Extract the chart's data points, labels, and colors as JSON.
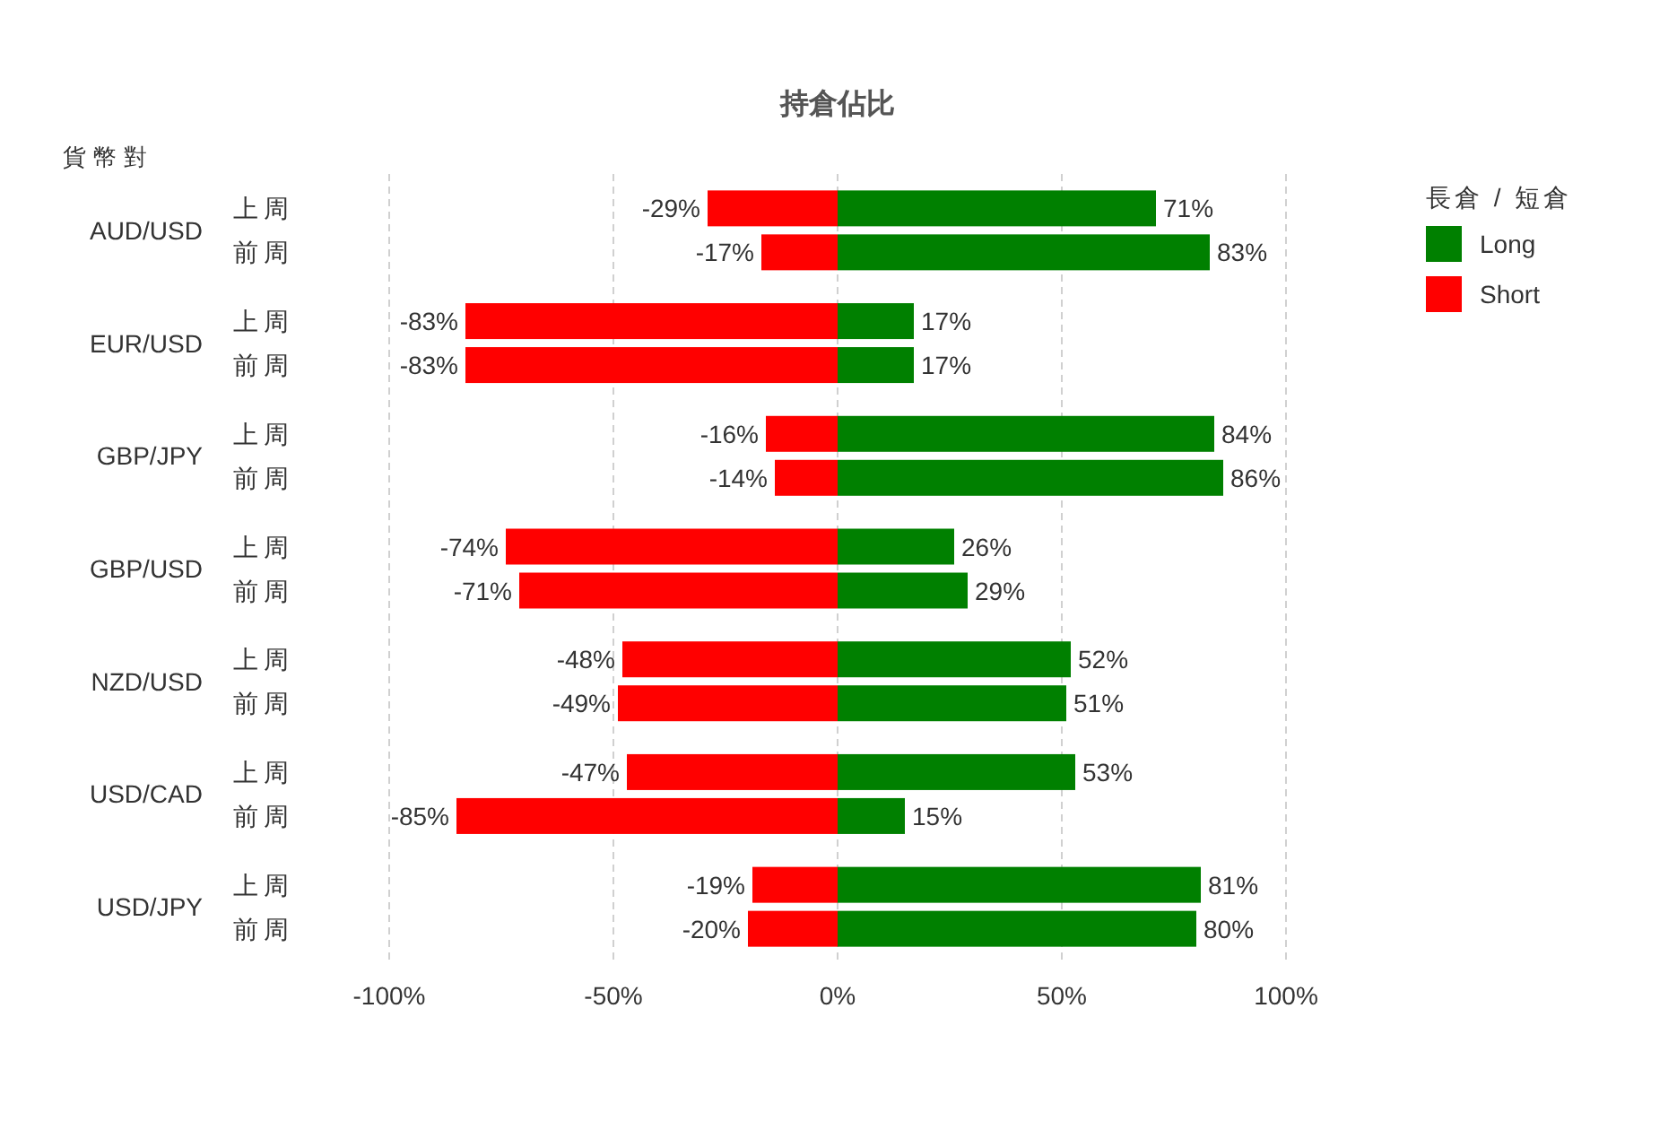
{
  "chart_data": {
    "type": "bar",
    "orientation": "horizontal",
    "stacked": true,
    "title": "持倉佔比",
    "ylabel": "貨幣對",
    "legend_title": "長倉 / 短倉",
    "legend": "top right",
    "grid": "x",
    "categories": [
      "上周",
      "前周",
      "上周",
      "前周",
      "上周",
      "前周",
      "上周",
      "前周",
      "上周",
      "前周",
      "上周",
      "前周",
      "上周",
      "前周"
    ],
    "annotations": [
      "AUD/USD",
      "EUR/USD",
      "GBP/JPY",
      "GBP/USD",
      "NZD/USD",
      "USD/CAD",
      "USD/JPY"
    ],
    "xlim": [
      -100,
      100
    ],
    "xticks": [
      {
        "value": -100,
        "label": "-100%"
      },
      {
        "value": -50,
        "label": "-50%"
      },
      {
        "value": 0,
        "label": "0%"
      },
      {
        "value": 50,
        "label": "50%"
      },
      {
        "value": 100,
        "label": "100%"
      }
    ],
    "series": [
      {
        "name": "Long",
        "color": "#008000",
        "values": [
          71,
          83,
          17,
          17,
          84,
          86,
          26,
          29,
          52,
          51,
          53,
          15,
          81,
          80
        ],
        "value_labels": [
          "71%",
          "83%",
          "17%",
          "17%",
          "84%",
          "86%",
          "26%",
          "29%",
          "52%",
          "51%",
          "53%",
          "15%",
          "81%",
          "80%"
        ]
      },
      {
        "name": "Short",
        "color": "#ff0000",
        "values": [
          -29,
          -17,
          -83,
          -83,
          -16,
          -14,
          -74,
          -71,
          -48,
          -49,
          -47,
          -85,
          -19,
          -20
        ],
        "value_labels": [
          "-29%",
          "-17%",
          "-83%",
          "-83%",
          "-16%",
          "-14%",
          "-74%",
          "-71%",
          "-48%",
          "-49%",
          "-47%",
          "-85%",
          "-19%",
          "-20%"
        ]
      }
    ]
  }
}
